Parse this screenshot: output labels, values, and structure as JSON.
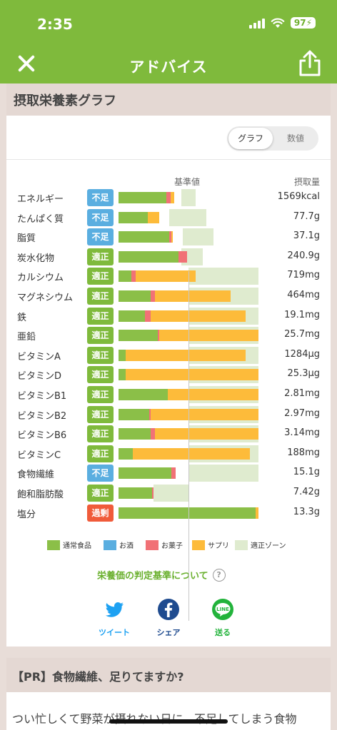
{
  "status": {
    "time": "2:35",
    "battery": "97"
  },
  "nav": {
    "title": "アドバイス"
  },
  "section": {
    "title": "摂取栄養素グラフ"
  },
  "toggle": {
    "graph": "グラフ",
    "values": "数値"
  },
  "headers": {
    "reference": "基準値",
    "intake": "摂取量"
  },
  "colors": {
    "normal": "#8bbf48",
    "alcohol": "#5aaee0",
    "snack": "#f17176",
    "supplement": "#fdbb3a",
    "zone": "#dfebcf",
    "ok_badge": "#7fba3c",
    "low_badge": "#5aaee0",
    "over_badge": "#f05b3a"
  },
  "nutrients": [
    {
      "name": "エネルギー",
      "status": "不足",
      "status_type": "low",
      "value": "1569kcal",
      "normal": 0.34,
      "snack": 0.03,
      "supplement": 0.03,
      "zone": [
        0.45,
        0.55
      ]
    },
    {
      "name": "たんぱく質",
      "status": "不足",
      "status_type": "low",
      "value": "77.7g",
      "normal": 0.21,
      "snack": 0,
      "supplement": 0.08,
      "zone": [
        0.36,
        0.63
      ]
    },
    {
      "name": "脂質",
      "status": "不足",
      "status_type": "low",
      "value": "37.1g",
      "normal": 0.36,
      "snack": 0.02,
      "supplement": 0.01,
      "zone": [
        0.46,
        0.68
      ]
    },
    {
      "name": "炭水化物",
      "status": "適正",
      "status_type": "ok",
      "value": "240.9g",
      "normal": 0.43,
      "snack": 0.06,
      "supplement": 0,
      "zone": [
        0.45,
        0.6
      ]
    },
    {
      "name": "カルシウム",
      "status": "適正",
      "status_type": "ok",
      "value": "719mg",
      "normal": 0.09,
      "snack": 0.03,
      "supplement": 0.43,
      "zone": [
        0.5,
        1.0
      ]
    },
    {
      "name": "マグネシウム",
      "status": "適正",
      "status_type": "ok",
      "value": "464mg",
      "normal": 0.23,
      "snack": 0.03,
      "supplement": 0.54,
      "zone": [
        0.5,
        1.0
      ]
    },
    {
      "name": "鉄",
      "status": "適正",
      "status_type": "ok",
      "value": "19.1mg",
      "normal": 0.19,
      "snack": 0.04,
      "supplement": 0.68,
      "zone": [
        0.5,
        1.0
      ]
    },
    {
      "name": "亜鉛",
      "status": "適正",
      "status_type": "ok",
      "value": "25.7mg",
      "normal": 0.28,
      "snack": 0.01,
      "supplement": 0.71,
      "zone": [
        0.5,
        1.0
      ]
    },
    {
      "name": "ビタミンA",
      "status": "適正",
      "status_type": "ok",
      "value": "1284µg",
      "normal": 0.05,
      "snack": 0,
      "supplement": 0.86,
      "zone": [
        0.5,
        1.0
      ]
    },
    {
      "name": "ビタミンD",
      "status": "適正",
      "status_type": "ok",
      "value": "25.3µg",
      "normal": 0.05,
      "snack": 0,
      "supplement": 0.95,
      "zone": [
        0.5,
        1.0
      ]
    },
    {
      "name": "ビタミンB1",
      "status": "適正",
      "status_type": "ok",
      "value": "2.81mg",
      "normal": 0.35,
      "snack": 0,
      "supplement": 0.65,
      "zone": [
        0.5,
        1.0
      ]
    },
    {
      "name": "ビタミンB2",
      "status": "適正",
      "status_type": "ok",
      "value": "2.97mg",
      "normal": 0.22,
      "snack": 0.01,
      "supplement": 0.77,
      "zone": [
        0.5,
        1.0
      ]
    },
    {
      "name": "ビタミンB6",
      "status": "適正",
      "status_type": "ok",
      "value": "3.14mg",
      "normal": 0.23,
      "snack": 0.03,
      "supplement": 0.74,
      "zone": [
        0.5,
        1.0
      ]
    },
    {
      "name": "ビタミンC",
      "status": "適正",
      "status_type": "ok",
      "value": "188mg",
      "normal": 0.1,
      "snack": 0,
      "supplement": 0.84,
      "zone": [
        0.5,
        1.0
      ]
    },
    {
      "name": "食物繊維",
      "status": "不足",
      "status_type": "low",
      "value": "15.1g",
      "normal": 0.38,
      "snack": 0.03,
      "supplement": 0,
      "zone": [
        0.5,
        1.0
      ]
    },
    {
      "name": "飽和脂肪酸",
      "status": "適正",
      "status_type": "ok",
      "value": "7.42g",
      "normal": 0.24,
      "snack": 0.01,
      "supplement": 0,
      "zone": [
        0.25,
        0.5
      ]
    },
    {
      "name": "塩分",
      "status": "過剰",
      "status_type": "over",
      "value": "13.3g",
      "normal": 0.98,
      "snack": 0,
      "supplement": 0.02,
      "zone": [
        0,
        0
      ]
    }
  ],
  "legend": {
    "normal": "通常食品",
    "alcohol": "お酒",
    "snack": "お菓子",
    "supplement": "サプリ",
    "zone": "適正ゾーン"
  },
  "criteria_link": "栄養価の判定基準について",
  "share": {
    "tweet": "ツイート",
    "share": "シェア",
    "send": "送る",
    "line_icon_text": "LINE"
  },
  "pr": {
    "title": "【PR】食物繊維、足りてますか?",
    "body": "つい忙しくて野菜が摂れない日に、不足してしまう食物"
  }
}
